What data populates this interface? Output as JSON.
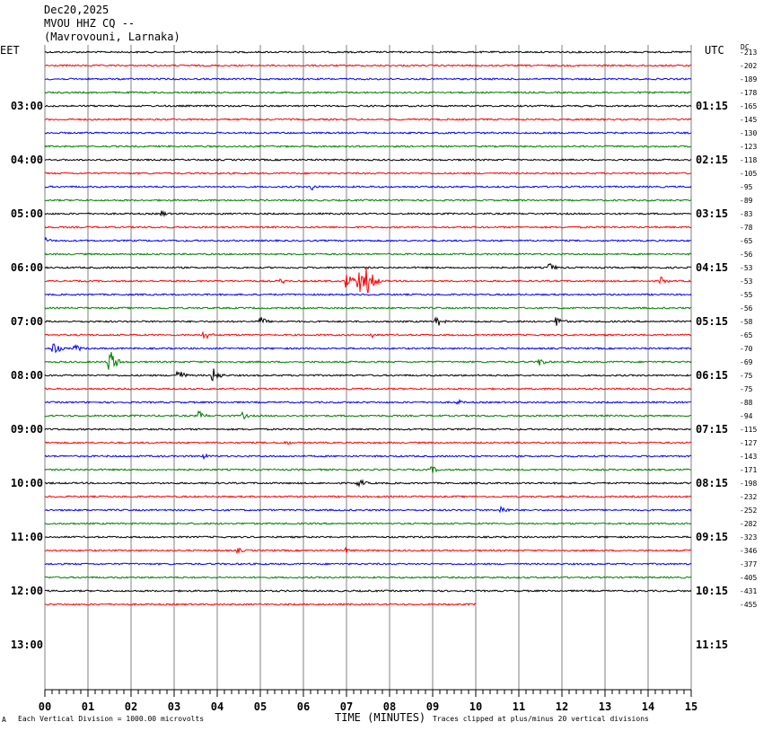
{
  "header": {
    "date": "Dec20,2025",
    "station": "MVOU HHZ CQ --",
    "location": "(Mavrovouni, Larnaka)"
  },
  "left_label": "EET",
  "right_label": "UTC",
  "dc_label": "DC",
  "footer": {
    "left_mark": "A",
    "scale_note": "Each Vertical Division = 1000.00 microvolts",
    "clip_note": "Traces clipped at plus/minus 20 vertical divisions"
  },
  "chart_data": {
    "type": "line",
    "title": "MVOU HHZ CQ --",
    "xlabel": "TIME (MINUTES)",
    "x_ticks": [
      "00",
      "01",
      "02",
      "03",
      "04",
      "05",
      "06",
      "07",
      "08",
      "09",
      "10",
      "11",
      "12",
      "13",
      "14",
      "15"
    ],
    "xlim": [
      0,
      15
    ],
    "rows_per_hour": 4,
    "trace_colors": [
      "#000000",
      "#ff0000",
      "#0000ff",
      "#008000"
    ],
    "left_hour_labels": [
      "03:00",
      "04:00",
      "05:00",
      "06:00",
      "07:00",
      "08:00",
      "09:00",
      "10:00",
      "11:00",
      "12:00",
      "13:00"
    ],
    "right_hour_labels": [
      "01:15",
      "02:15",
      "03:15",
      "04:15",
      "05:15",
      "06:15",
      "07:15",
      "08:15",
      "09:15",
      "10:15",
      "11:15"
    ],
    "dc_offsets": [
      "-213",
      "-202",
      "-189",
      "-178",
      "-165",
      "-145",
      "-130",
      "-123",
      "-118",
      "-105",
      "-95",
      "-89",
      "-83",
      "-78",
      "-65",
      "-56",
      "-53",
      "-53",
      "-55",
      "-56",
      "-58",
      "-65",
      "-70",
      "-69",
      "-75",
      "-75",
      "-88",
      "-94",
      "-115",
      "-127",
      "-143",
      "-171",
      "-198",
      "-232",
      "-252",
      "-282",
      "-323",
      "-346",
      "-377",
      "-405",
      "-431",
      "-455"
    ],
    "last_trace_end_minute": 10,
    "events": [
      {
        "row": 10,
        "minute": 6.2,
        "amp": 4
      },
      {
        "row": 12,
        "minute": 2.7,
        "amp": 4
      },
      {
        "row": 14,
        "minute": 0.0,
        "amp": 4
      },
      {
        "row": 17,
        "minute": 7.0,
        "amp": 10
      },
      {
        "row": 17,
        "minute": 7.3,
        "amp": 14
      },
      {
        "row": 17,
        "minute": 7.5,
        "amp": 16
      },
      {
        "row": 17,
        "minute": 14.3,
        "amp": 5
      },
      {
        "row": 17,
        "minute": 5.5,
        "amp": 3
      },
      {
        "row": 16,
        "minute": 11.7,
        "amp": 6
      },
      {
        "row": 20,
        "minute": 5.0,
        "amp": 6
      },
      {
        "row": 20,
        "minute": 9.1,
        "amp": 6
      },
      {
        "row": 20,
        "minute": 11.9,
        "amp": 6
      },
      {
        "row": 21,
        "minute": 3.7,
        "amp": 6
      },
      {
        "row": 21,
        "minute": 7.6,
        "amp": 3
      },
      {
        "row": 22,
        "minute": 0.2,
        "amp": 8
      },
      {
        "row": 22,
        "minute": 0.7,
        "amp": 5
      },
      {
        "row": 23,
        "minute": 1.5,
        "amp": 16
      },
      {
        "row": 23,
        "minute": 11.5,
        "amp": 5
      },
      {
        "row": 24,
        "minute": 3.1,
        "amp": 7
      },
      {
        "row": 24,
        "minute": 3.9,
        "amp": 9
      },
      {
        "row": 26,
        "minute": 9.6,
        "amp": 3
      },
      {
        "row": 27,
        "minute": 3.6,
        "amp": 5
      },
      {
        "row": 27,
        "minute": 4.6,
        "amp": 4
      },
      {
        "row": 29,
        "minute": 5.6,
        "amp": 3
      },
      {
        "row": 30,
        "minute": 3.7,
        "amp": 3
      },
      {
        "row": 31,
        "minute": 9.0,
        "amp": 4
      },
      {
        "row": 32,
        "minute": 7.3,
        "amp": 5
      },
      {
        "row": 34,
        "minute": 10.6,
        "amp": 5
      },
      {
        "row": 37,
        "minute": 4.5,
        "amp": 3
      },
      {
        "row": 37,
        "minute": 7.0,
        "amp": 3
      }
    ]
  }
}
